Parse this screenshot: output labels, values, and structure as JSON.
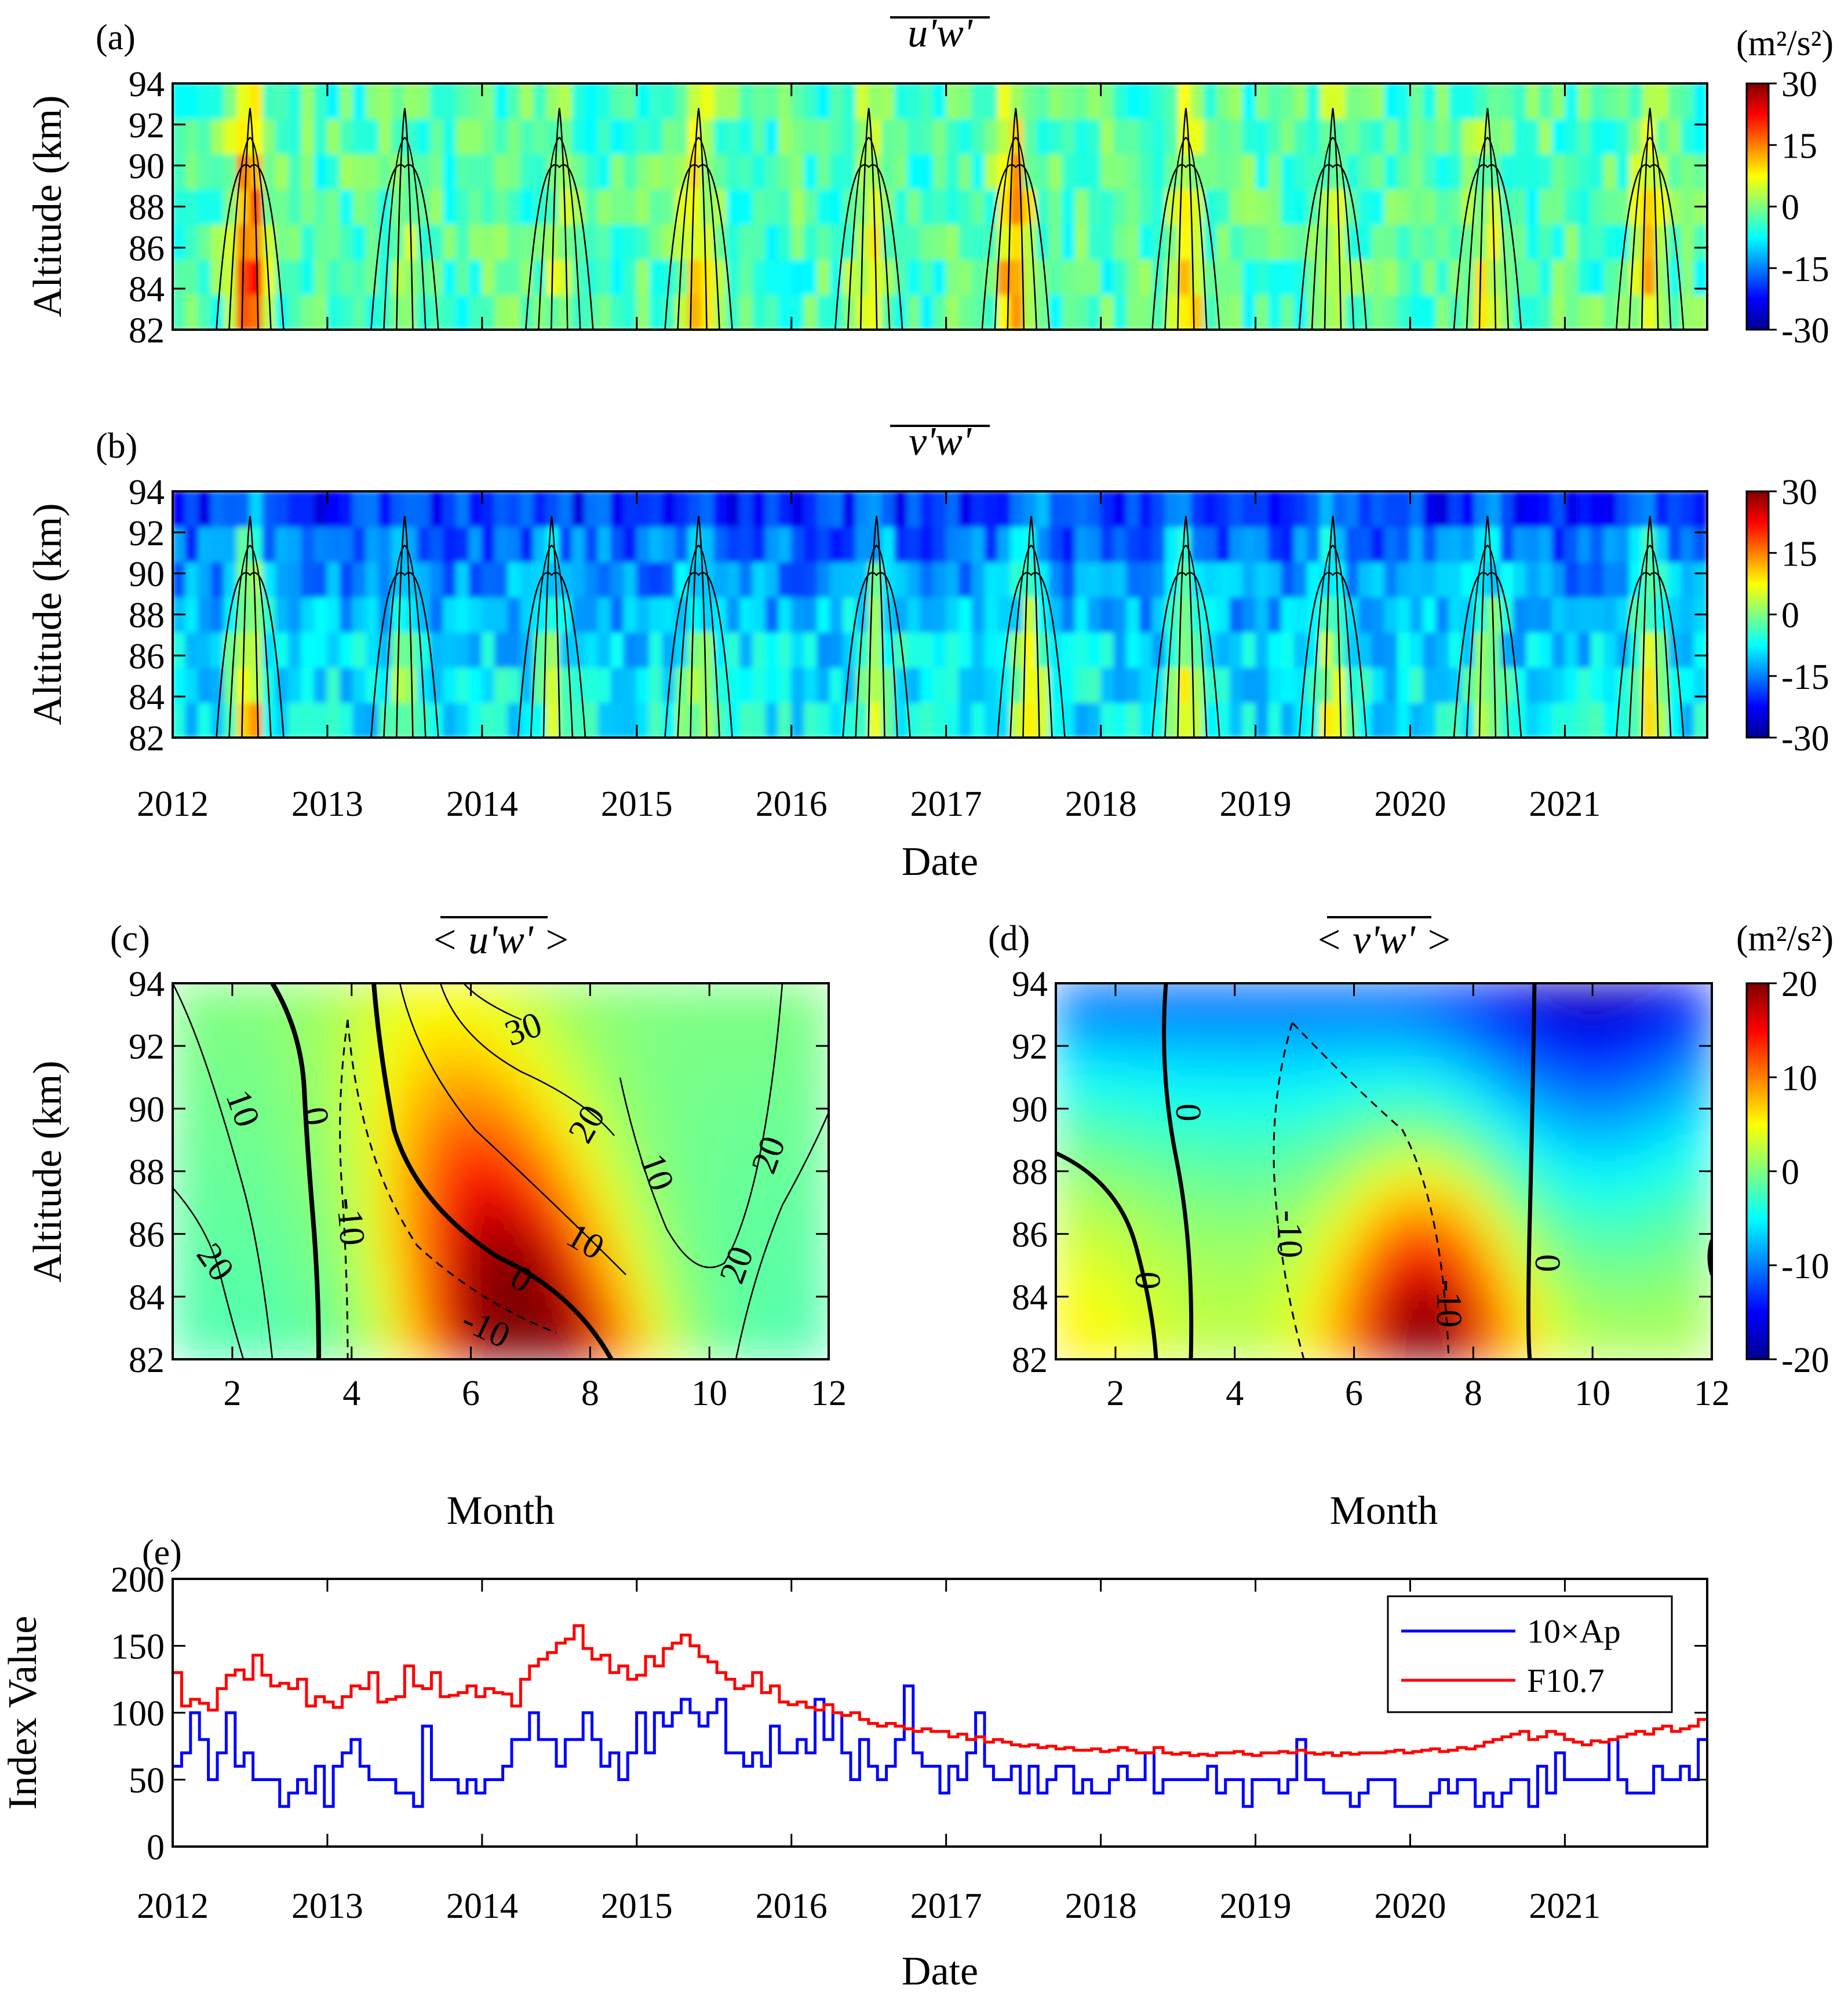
{
  "colors": {
    "jet": [
      "#00008f",
      "#0000ff",
      "#0080ff",
      "#00ffff",
      "#80ff80",
      "#ffff00",
      "#ff8000",
      "#ff0000",
      "#800000"
    ],
    "ap_line": "#0000ff",
    "f107_line": "#ff0000",
    "axis": "#000000"
  },
  "chart_data": [
    {
      "id": "a",
      "type": "heatmap",
      "panel_label": "(a)",
      "title": "u'w'",
      "ylabel": "Altitude (km)",
      "xlabel": "",
      "xlim": [
        2012,
        2021.92
      ],
      "ylim": [
        82,
        94
      ],
      "xticks": [
        "2012",
        "2013",
        "2014",
        "2015",
        "2016",
        "2017",
        "2018",
        "2019",
        "2020",
        "2021"
      ],
      "yticks": [
        "82",
        "84",
        "86",
        "88",
        "90",
        "92",
        "94"
      ],
      "colorbar": {
        "unit": "(m²/s²)",
        "min": -30,
        "max": 30,
        "ticks": [
          "30",
          "15",
          "0",
          "-15",
          "-30"
        ]
      },
      "summer_peaks": [
        {
          "t": 2012.5,
          "amp": 28
        },
        {
          "t": 2013.5,
          "amp": 8
        },
        {
          "t": 2014.5,
          "amp": 7
        },
        {
          "t": 2015.4,
          "amp": 16
        },
        {
          "t": 2016.5,
          "amp": 12
        },
        {
          "t": 2017.45,
          "amp": 22
        },
        {
          "t": 2018.55,
          "amp": 16
        },
        {
          "t": 2019.5,
          "amp": 9
        },
        {
          "t": 2020.5,
          "amp": 10
        },
        {
          "t": 2021.55,
          "amp": 14
        }
      ],
      "background": -3
    },
    {
      "id": "b",
      "type": "heatmap",
      "panel_label": "(b)",
      "title": "v'w'",
      "ylabel": "Altitude (km)",
      "xlabel": "Date",
      "xlim": [
        2012,
        2021.92
      ],
      "ylim": [
        82,
        94
      ],
      "xticks": [
        "2012",
        "2013",
        "2014",
        "2015",
        "2016",
        "2017",
        "2018",
        "2019",
        "2020",
        "2021"
      ],
      "yticks": [
        "82",
        "84",
        "86",
        "88",
        "90",
        "92",
        "94"
      ],
      "colorbar": {
        "unit": "",
        "min": -30,
        "max": 30,
        "ticks": [
          "30",
          "15",
          "0",
          "-15",
          "-30"
        ]
      },
      "summer_peaks": [
        {
          "t": 2012.5,
          "amp": 22
        },
        {
          "t": 2013.5,
          "amp": 12
        },
        {
          "t": 2014.45,
          "amp": 10
        },
        {
          "t": 2015.4,
          "amp": 11
        },
        {
          "t": 2016.55,
          "amp": 14
        },
        {
          "t": 2017.55,
          "amp": 16
        },
        {
          "t": 2018.55,
          "amp": 15
        },
        {
          "t": 2019.5,
          "amp": 14
        },
        {
          "t": 2020.5,
          "amp": 12
        },
        {
          "t": 2021.55,
          "amp": 16
        }
      ],
      "background": -8
    },
    {
      "id": "c",
      "type": "heatmap",
      "panel_label": "(c)",
      "title": "< u'w' >",
      "ylabel": "Altitude (km)",
      "xlabel": "Month",
      "xlim": [
        1,
        12
      ],
      "ylim": [
        82,
        94
      ],
      "xticks": [
        "2",
        "4",
        "6",
        "8",
        "10",
        "12"
      ],
      "yticks": [
        "82",
        "84",
        "86",
        "88",
        "90",
        "92",
        "94"
      ],
      "contour_labels": [
        "10",
        "0",
        "-10",
        "30",
        "20",
        "10",
        "20",
        "0",
        "-10",
        "10",
        "20",
        "20"
      ]
    },
    {
      "id": "d",
      "type": "heatmap",
      "panel_label": "(d)",
      "title": "< v'w' >",
      "ylabel": "",
      "xlabel": "Month",
      "xlim": [
        1,
        12
      ],
      "ylim": [
        82,
        94
      ],
      "xticks": [
        "2",
        "4",
        "6",
        "8",
        "10",
        "12"
      ],
      "yticks": [
        "82",
        "84",
        "86",
        "88",
        "90",
        "92",
        "94"
      ],
      "colorbar": {
        "unit": "(m²/s²)",
        "min": -20,
        "max": 20,
        "ticks": [
          "20",
          "10",
          "0",
          "-10",
          "-20"
        ]
      },
      "contour_labels": [
        "0",
        "0",
        "-10",
        "-10",
        "0"
      ]
    },
    {
      "id": "e",
      "type": "line",
      "panel_label": "(e)",
      "title": "",
      "ylabel": "Index Value",
      "xlabel": "Date",
      "xlim": [
        2012,
        2021.92
      ],
      "ylim": [
        0,
        200
      ],
      "xticks": [
        "2012",
        "2013",
        "2014",
        "2015",
        "2016",
        "2017",
        "2018",
        "2019",
        "2020",
        "2021"
      ],
      "yticks": [
        "0",
        "50",
        "100",
        "150",
        "200"
      ],
      "legend_position": "top-right",
      "series": [
        {
          "name": "10×Ap",
          "color": "#0000ff",
          "values": [
            60,
            70,
            100,
            80,
            50,
            70,
            100,
            60,
            70,
            50,
            50,
            50,
            30,
            40,
            50,
            40,
            60,
            30,
            60,
            70,
            80,
            60,
            50,
            50,
            50,
            40,
            40,
            30,
            90,
            50,
            50,
            50,
            40,
            50,
            40,
            50,
            50,
            60,
            80,
            80,
            100,
            80,
            80,
            60,
            80,
            80,
            100,
            80,
            60,
            70,
            50,
            70,
            100,
            70,
            100,
            90,
            100,
            110,
            100,
            90,
            100,
            110,
            70,
            70,
            60,
            70,
            60,
            90,
            70,
            70,
            80,
            70,
            110,
            80,
            100,
            70,
            50,
            80,
            60,
            50,
            60,
            80,
            120,
            70,
            60,
            60,
            40,
            60,
            50,
            70,
            100,
            60,
            50,
            50,
            60,
            40,
            60,
            40,
            50,
            60,
            60,
            40,
            50,
            40,
            40,
            50,
            60,
            50,
            50,
            70,
            40,
            50,
            50,
            50,
            50,
            50,
            60,
            40,
            50,
            50,
            30,
            50,
            50,
            50,
            40,
            50,
            80,
            50,
            50,
            40,
            40,
            40,
            30,
            40,
            50,
            50,
            50,
            30,
            30,
            30,
            30,
            40,
            50,
            40,
            50,
            50,
            30,
            40,
            30,
            40,
            50,
            50,
            30,
            60,
            40,
            70,
            50,
            50,
            50,
            50,
            50,
            80,
            50,
            40,
            40,
            40,
            60,
            50,
            50,
            60,
            50,
            80
          ]
        },
        {
          "name": "F10.7",
          "color": "#ff0000",
          "values": [
            130,
            105,
            110,
            107,
            102,
            118,
            128,
            132,
            125,
            143,
            128,
            120,
            122,
            118,
            125,
            105,
            112,
            108,
            104,
            112,
            120,
            118,
            130,
            108,
            110,
            112,
            135,
            120,
            118,
            130,
            112,
            113,
            115,
            120,
            112,
            118,
            115,
            114,
            105,
            125,
            135,
            140,
            145,
            152,
            155,
            165,
            148,
            140,
            143,
            130,
            135,
            125,
            128,
            142,
            135,
            148,
            152,
            158,
            150,
            142,
            138,
            130,
            125,
            118,
            120,
            130,
            115,
            120,
            108,
            106,
            108,
            104,
            102,
            106,
            100,
            98,
            100,
            95,
            92,
            90,
            92,
            90,
            88,
            86,
            88,
            86,
            86,
            82,
            84,
            80,
            82,
            78,
            80,
            78,
            76,
            75,
            76,
            74,
            75,
            73,
            74,
            72,
            72,
            73,
            71,
            72,
            74,
            72,
            70,
            70,
            74,
            70,
            69,
            70,
            68,
            69,
            68,
            70,
            70,
            71,
            69,
            68,
            70,
            70,
            71,
            70,
            72,
            70,
            69,
            70,
            68,
            70,
            69,
            70,
            70,
            70,
            71,
            72,
            70,
            71,
            72,
            73,
            71,
            72,
            74,
            73,
            75,
            78,
            80,
            82,
            84,
            86,
            80,
            82,
            86,
            84,
            80,
            78,
            76,
            79,
            78,
            80,
            82,
            84,
            86,
            84,
            88,
            90,
            86,
            88,
            90,
            95
          ]
        }
      ]
    }
  ]
}
